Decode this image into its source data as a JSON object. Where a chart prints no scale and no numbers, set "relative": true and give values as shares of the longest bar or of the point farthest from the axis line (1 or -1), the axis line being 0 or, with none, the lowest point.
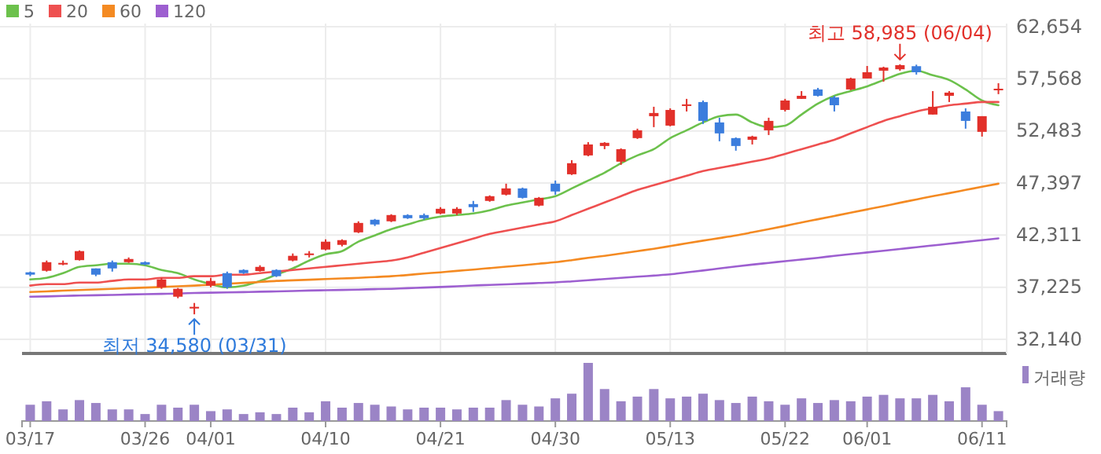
{
  "chart_data": [
    {
      "type": "candlestick",
      "categories": [
        null,
        null,
        null,
        null,
        null,
        null,
        null,
        null,
        null,
        null,
        null,
        null,
        null,
        null,
        null,
        null,
        null,
        null,
        null,
        null,
        null,
        null,
        null,
        null,
        null,
        null,
        null,
        null,
        null,
        null,
        null,
        null,
        null,
        null,
        null,
        null,
        null,
        null,
        null,
        null,
        null,
        null,
        null,
        null,
        null,
        null,
        null,
        null,
        null,
        null,
        null,
        null,
        null,
        null,
        null,
        null,
        null,
        null,
        null,
        null
      ],
      "ohlc": [
        [
          38680,
          38750,
          38300,
          38450
        ],
        [
          38830,
          39830,
          38750,
          39670
        ],
        [
          39440,
          39830,
          39370,
          39600
        ],
        [
          39870,
          40820,
          39830,
          40750
        ],
        [
          39060,
          39060,
          38300,
          38450
        ],
        [
          39670,
          39830,
          38750,
          39060
        ],
        [
          39670,
          40130,
          39600,
          39980
        ],
        [
          39670,
          39750,
          39370,
          39440
        ],
        [
          37220,
          38140,
          37070,
          37990
        ],
        [
          36300,
          37150,
          36150,
          37070
        ],
        [
          35150,
          35690,
          34580,
          35310
        ],
        [
          37380,
          38140,
          37220,
          37840
        ],
        [
          38600,
          38750,
          37070,
          37220
        ],
        [
          38910,
          38980,
          38520,
          38600
        ],
        [
          38800,
          39370,
          38750,
          39210
        ],
        [
          38910,
          38980,
          38220,
          38300
        ],
        [
          39830,
          40520,
          39750,
          40290
        ],
        [
          40360,
          40750,
          40130,
          40520
        ],
        [
          40900,
          41900,
          40820,
          41670
        ],
        [
          41360,
          41900,
          41210,
          41820
        ],
        [
          42580,
          43660,
          42510,
          43500
        ],
        [
          43810,
          43890,
          43200,
          43350
        ],
        [
          43660,
          44350,
          43580,
          44270
        ],
        [
          44270,
          44350,
          43890,
          43960
        ],
        [
          44270,
          44420,
          43810,
          43960
        ],
        [
          44420,
          45040,
          44350,
          44880
        ],
        [
          44420,
          45040,
          44270,
          44880
        ],
        [
          45340,
          45650,
          44580,
          45040
        ],
        [
          45650,
          46190,
          45570,
          46110
        ],
        [
          46260,
          47330,
          46180,
          46870
        ],
        [
          46870,
          46950,
          45880,
          45950
        ],
        [
          45190,
          46030,
          45110,
          45950
        ],
        [
          47330,
          47640,
          46260,
          46570
        ],
        [
          48250,
          49630,
          48180,
          49330
        ],
        [
          50090,
          51390,
          50010,
          51160
        ],
        [
          51010,
          51390,
          50700,
          51320
        ],
        [
          49480,
          50780,
          49170,
          50700
        ],
        [
          51780,
          52700,
          51700,
          52540
        ],
        [
          53920,
          54840,
          52850,
          54230
        ],
        [
          53000,
          54690,
          52930,
          54530
        ],
        [
          54920,
          55610,
          54380,
          55070
        ],
        [
          55300,
          55450,
          53160,
          53460
        ],
        [
          53310,
          53770,
          51470,
          52240
        ],
        [
          51780,
          51850,
          50550,
          51010
        ],
        [
          51620,
          52010,
          51160,
          51930
        ],
        [
          52540,
          53770,
          52080,
          53460
        ],
        [
          54530,
          55610,
          54380,
          55450
        ],
        [
          55610,
          56370,
          55610,
          55910
        ],
        [
          56530,
          56680,
          55840,
          55910
        ],
        [
          55760,
          55910,
          54380,
          54990
        ],
        [
          56530,
          57680,
          56450,
          57600
        ],
        [
          57600,
          58820,
          57600,
          58210
        ],
        [
          58360,
          58750,
          57290,
          58670
        ],
        [
          58500,
          58985,
          58360,
          58900
        ],
        [
          58800,
          58950,
          57980,
          58210
        ],
        [
          54080,
          56370,
          54080,
          54840
        ],
        [
          55910,
          56370,
          55300,
          56220
        ],
        [
          54380,
          54690,
          52700,
          53460
        ],
        [
          52390,
          53920,
          51930,
          53920
        ],
        [
          56450,
          57140,
          56070,
          56600
        ]
      ],
      "colors": [
        "#3b7ddd",
        "#e2302a",
        "#e2302a",
        "#e2302a",
        "#3b7ddd",
        "#3b7ddd",
        "#e2302a",
        "#3b7ddd",
        "#e2302a",
        "#e2302a",
        "#e2302a",
        "#e2302a",
        "#3b7ddd",
        "#3b7ddd",
        "#e2302a",
        "#3b7ddd",
        "#e2302a",
        "#e2302a",
        "#e2302a",
        "#e2302a",
        "#e2302a",
        "#3b7ddd",
        "#e2302a",
        "#3b7ddd",
        "#3b7ddd",
        "#e2302a",
        "#e2302a",
        "#3b7ddd",
        "#e2302a",
        "#e2302a",
        "#3b7ddd",
        "#e2302a",
        "#3b7ddd",
        "#e2302a",
        "#e2302a",
        "#e2302a",
        "#e2302a",
        "#e2302a",
        "#e2302a",
        "#e2302a",
        "#e2302a",
        "#3b7ddd",
        "#3b7ddd",
        "#3b7ddd",
        "#e2302a",
        "#e2302a",
        "#e2302a",
        "#e2302a",
        "#3b7ddd",
        "#3b7ddd",
        "#e2302a",
        "#e2302a",
        "#e2302a",
        "#e2302a",
        "#3b7ddd",
        "#e2302a",
        "#e2302a",
        "#3b7ddd",
        "#e2302a",
        "#e2302a"
      ],
      "series": [
        {
          "name": "5",
          "type": "line",
          "color": "#6cc14c",
          "values": [
            37990,
            38140,
            38600,
            39210,
            39370,
            39520,
            39520,
            39370,
            38910,
            38600,
            37990,
            37530,
            37220,
            37380,
            37840,
            38450,
            39060,
            39830,
            40440,
            40750,
            41670,
            42280,
            42890,
            43350,
            43810,
            44120,
            44270,
            44420,
            44730,
            45190,
            45500,
            45800,
            46110,
            46870,
            47640,
            48410,
            49330,
            50090,
            50700,
            51780,
            52540,
            53310,
            53920,
            54080,
            53310,
            52850,
            53000,
            54080,
            55150,
            55910,
            56370,
            56830,
            57450,
            58060,
            58360,
            57910,
            57450,
            56530,
            55450,
            54990
          ]
        },
        {
          "name": "20",
          "type": "line",
          "color": "#ee5050",
          "values": [
            37380,
            37530,
            37530,
            37680,
            37680,
            37840,
            37990,
            37990,
            38140,
            38140,
            38300,
            38300,
            38450,
            38450,
            38600,
            38750,
            38910,
            39060,
            39210,
            39370,
            39520,
            39670,
            39830,
            40130,
            40590,
            41050,
            41510,
            41970,
            42430,
            42740,
            43040,
            43350,
            43660,
            44270,
            44880,
            45500,
            46110,
            46720,
            47180,
            47640,
            48100,
            48560,
            48870,
            49170,
            49480,
            49790,
            50240,
            50700,
            51160,
            51620,
            52240,
            52850,
            53460,
            53920,
            54380,
            54690,
            54990,
            55150,
            55300,
            55300
          ]
        },
        {
          "name": "60",
          "type": "line",
          "color": "#f48a22",
          "values": [
            36760,
            36820,
            36890,
            36950,
            37010,
            37070,
            37130,
            37190,
            37250,
            37310,
            37380,
            37470,
            37560,
            37650,
            37740,
            37840,
            37900,
            37960,
            38020,
            38080,
            38140,
            38220,
            38300,
            38420,
            38560,
            38680,
            38820,
            38950,
            39090,
            39230,
            39370,
            39520,
            39670,
            39870,
            40090,
            40290,
            40520,
            40750,
            40980,
            41240,
            41510,
            41770,
            42020,
            42280,
            42580,
            42890,
            43210,
            43540,
            43860,
            44180,
            44500,
            44820,
            45140,
            45470,
            45790,
            46110,
            46410,
            46720,
            47030,
            47330
          ]
        },
        {
          "name": "120",
          "type": "line",
          "color": "#9d5fd0",
          "values": [
            36300,
            36330,
            36380,
            36410,
            36440,
            36470,
            36520,
            36550,
            36580,
            36610,
            36660,
            36690,
            36720,
            36750,
            36790,
            36820,
            36850,
            36900,
            36930,
            36960,
            36990,
            37040,
            37070,
            37130,
            37190,
            37250,
            37310,
            37390,
            37450,
            37510,
            37570,
            37640,
            37700,
            37800,
            37910,
            38030,
            38140,
            38250,
            38360,
            38480,
            38680,
            38860,
            39060,
            39250,
            39430,
            39600,
            39770,
            39930,
            40100,
            40290,
            40460,
            40620,
            40790,
            40960,
            41130,
            41300,
            41470,
            41650,
            41820,
            41990
          ]
        }
      ],
      "ylim": [
        30760,
        62960
      ],
      "yticks": [
        {
          "value": 32140,
          "label": "32,140"
        },
        {
          "value": 37225,
          "label": "37,225"
        },
        {
          "value": 42311,
          "label": "42,311"
        },
        {
          "value": 47397,
          "label": "47,397"
        },
        {
          "value": 52483,
          "label": "52,483"
        },
        {
          "value": 57568,
          "label": "57,568"
        },
        {
          "value": 62654,
          "label": "62,654"
        }
      ],
      "annotations": [
        {
          "text": "최고 58,985 (06/04)",
          "y": 58985
        },
        {
          "text": "최저 34,580 (03/31)",
          "y": 34580
        }
      ],
      "grid": true,
      "legend": "top left",
      "tick_labels": "y"
    },
    {
      "type": "bar",
      "categories": [
        "03/17",
        null,
        null,
        null,
        null,
        null,
        null,
        "03/26",
        null,
        null,
        null,
        "04/01",
        null,
        null,
        null,
        null,
        null,
        null,
        "04/10",
        null,
        null,
        null,
        null,
        null,
        null,
        "04/21",
        null,
        null,
        null,
        null,
        null,
        null,
        "04/30",
        null,
        null,
        null,
        null,
        null,
        null,
        "05/13",
        null,
        null,
        null,
        null,
        null,
        null,
        "05/22",
        null,
        null,
        null,
        null,
        "06/01",
        null,
        null,
        null,
        null,
        null,
        null,
        "06/11",
        null
      ],
      "series": [
        {
          "name": "거래량",
          "color": "#9b84c6",
          "values": [
            0.28,
            0.34,
            0.2,
            0.36,
            0.31,
            0.2,
            0.2,
            0.12,
            0.28,
            0.23,
            0.28,
            0.17,
            0.2,
            0.12,
            0.15,
            0.12,
            0.23,
            0.15,
            0.34,
            0.23,
            0.31,
            0.28,
            0.25,
            0.2,
            0.23,
            0.23,
            0.2,
            0.23,
            0.23,
            0.36,
            0.28,
            0.25,
            0.39,
            0.47,
            1,
            0.55,
            0.34,
            0.42,
            0.55,
            0.39,
            0.42,
            0.47,
            0.36,
            0.31,
            0.42,
            0.34,
            0.28,
            0.39,
            0.31,
            0.36,
            0.34,
            0.42,
            0.45,
            0.39,
            0.39,
            0.45,
            0.34,
            0.58,
            0.28,
            0.17
          ]
        }
      ],
      "relative": true,
      "legend": "top right",
      "tick_labels": "x"
    }
  ]
}
